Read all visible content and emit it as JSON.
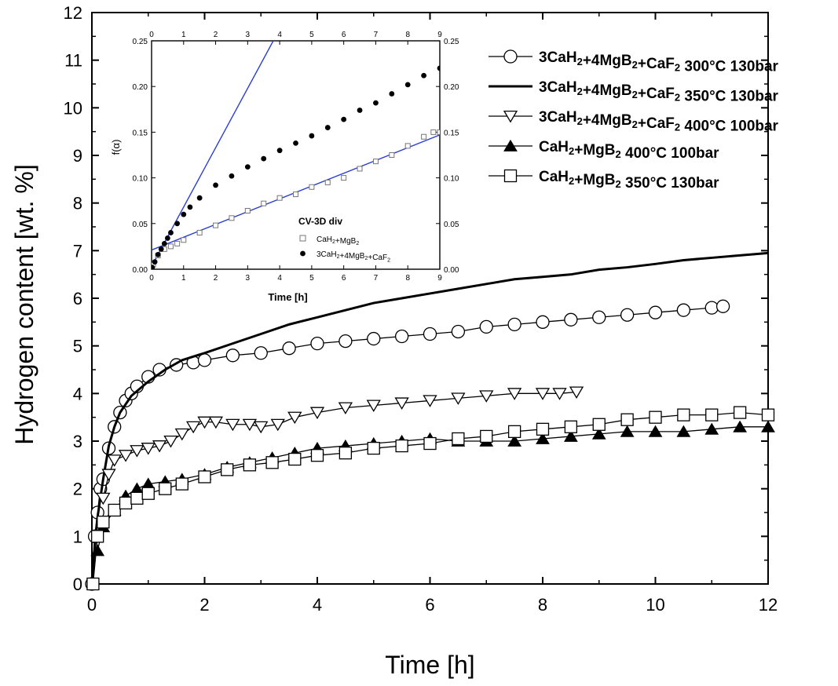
{
  "chart_data": {
    "type": "line",
    "xlabel": "Time [h]",
    "ylabel": "Hydrogen content [wt. %]",
    "xlim": [
      0,
      12
    ],
    "ylim": [
      0,
      12
    ],
    "xticks": [
      "0",
      "2",
      "4",
      "6",
      "8",
      "10",
      "12"
    ],
    "yticks": [
      "0",
      "1",
      "2",
      "3",
      "4",
      "5",
      "6",
      "7",
      "8",
      "9",
      "10",
      "11",
      "12"
    ],
    "legend_position": "top-right",
    "series": [
      {
        "name": "3CaH₂+4MgB₂+CaF₂ 300°C 130bar",
        "marker": "open-circle",
        "x": [
          0,
          0.05,
          0.1,
          0.15,
          0.2,
          0.3,
          0.4,
          0.5,
          0.6,
          0.7,
          0.8,
          1.0,
          1.2,
          1.5,
          1.8,
          2.0,
          2.5,
          3.0,
          3.5,
          4.0,
          4.5,
          5.0,
          5.5,
          6.0,
          6.5,
          7.0,
          7.5,
          8.0,
          8.5,
          9.0,
          9.5,
          10.0,
          10.5,
          11.0,
          11.2
        ],
        "y": [
          0,
          1.0,
          1.5,
          2.0,
          2.2,
          2.85,
          3.3,
          3.6,
          3.85,
          4.0,
          4.15,
          4.35,
          4.5,
          4.6,
          4.65,
          4.7,
          4.8,
          4.85,
          4.95,
          5.05,
          5.1,
          5.15,
          5.2,
          5.25,
          5.3,
          5.4,
          5.45,
          5.5,
          5.55,
          5.6,
          5.65,
          5.7,
          5.75,
          5.8,
          5.83
        ]
      },
      {
        "name": "3CaH₂+4MgB₂+CaF₂ 350°C 130bar",
        "marker": "none",
        "x": [
          0,
          0.05,
          0.1,
          0.2,
          0.3,
          0.4,
          0.5,
          0.7,
          1.0,
          1.3,
          1.6,
          2.0,
          2.5,
          3.0,
          3.5,
          4.0,
          4.5,
          5.0,
          5.5,
          6.0,
          6.5,
          7.0,
          7.5,
          8.0,
          8.5,
          9.0,
          9.5,
          10.0,
          10.5,
          11.0,
          11.5,
          12.0
        ],
        "y": [
          0,
          0.8,
          1.4,
          2.2,
          2.9,
          3.3,
          3.6,
          3.95,
          4.25,
          4.5,
          4.7,
          4.85,
          5.05,
          5.25,
          5.45,
          5.6,
          5.75,
          5.9,
          6.0,
          6.1,
          6.2,
          6.3,
          6.4,
          6.45,
          6.5,
          6.6,
          6.65,
          6.72,
          6.8,
          6.85,
          6.9,
          6.95
        ]
      },
      {
        "name": "3CaH₂+4MgB₂+CaF₂ 400°C 100bar",
        "marker": "open-triangle-down",
        "x": [
          0.2,
          0.3,
          0.4,
          0.6,
          0.8,
          1.0,
          1.2,
          1.4,
          1.6,
          1.8,
          2.0,
          2.2,
          2.5,
          2.8,
          3.0,
          3.3,
          3.6,
          4.0,
          4.5,
          5.0,
          5.5,
          6.0,
          6.5,
          7.0,
          7.5,
          8.0,
          8.3,
          8.6
        ],
        "y": [
          1.8,
          2.3,
          2.6,
          2.7,
          2.8,
          2.85,
          2.9,
          3.0,
          3.15,
          3.3,
          3.4,
          3.4,
          3.35,
          3.35,
          3.3,
          3.35,
          3.5,
          3.6,
          3.7,
          3.75,
          3.8,
          3.85,
          3.9,
          3.95,
          4.0,
          4.0,
          4.0,
          4.03
        ]
      },
      {
        "name": "CaH₂+MgB₂ 400°C 100bar",
        "marker": "filled-triangle-up",
        "x": [
          0.1,
          0.2,
          0.4,
          0.6,
          0.8,
          1.0,
          1.3,
          1.6,
          2.0,
          2.4,
          2.8,
          3.2,
          3.6,
          4.0,
          4.5,
          5.0,
          5.5,
          6.0,
          6.5,
          7.0,
          7.5,
          8.0,
          8.5,
          9.0,
          9.5,
          10.0,
          10.5,
          11.0,
          11.5,
          12.0
        ],
        "y": [
          0.7,
          1.2,
          1.55,
          1.85,
          2.0,
          2.1,
          2.15,
          2.2,
          2.3,
          2.45,
          2.55,
          2.65,
          2.75,
          2.85,
          2.9,
          2.95,
          3.0,
          3.05,
          3.0,
          3.0,
          3.0,
          3.05,
          3.1,
          3.15,
          3.2,
          3.2,
          3.2,
          3.25,
          3.3,
          3.3
        ]
      },
      {
        "name": "CaH₂+MgB₂ 350°C 130bar",
        "marker": "open-square",
        "x": [
          0.02,
          0.1,
          0.2,
          0.4,
          0.6,
          0.8,
          1.0,
          1.3,
          1.6,
          2.0,
          2.4,
          2.8,
          3.2,
          3.6,
          4.0,
          4.5,
          5.0,
          5.5,
          6.0,
          6.5,
          7.0,
          7.5,
          8.0,
          8.5,
          9.0,
          9.5,
          10.0,
          10.5,
          11.0,
          11.5,
          12.0
        ],
        "y": [
          0,
          1.0,
          1.3,
          1.55,
          1.7,
          1.8,
          1.9,
          2.0,
          2.1,
          2.25,
          2.4,
          2.5,
          2.55,
          2.62,
          2.7,
          2.75,
          2.85,
          2.9,
          2.95,
          3.05,
          3.1,
          3.2,
          3.25,
          3.3,
          3.35,
          3.45,
          3.5,
          3.55,
          3.55,
          3.6,
          3.55
        ]
      }
    ],
    "inset": {
      "type": "scatter",
      "title": "CV-3D div",
      "xlabel": "Time [h]",
      "ylabel": "f(α)",
      "xlim": [
        0,
        9
      ],
      "ylim": [
        0,
        0.25
      ],
      "xticks": [
        "0",
        "1",
        "2",
        "3",
        "4",
        "5",
        "6",
        "7",
        "8",
        "9"
      ],
      "yticks": [
        "0.00",
        "0.05",
        "0.10",
        "0.15",
        "0.20",
        "0.25"
      ],
      "series": [
        {
          "name": "CaH₂+MgB₂",
          "marker": "open-square",
          "x": [
            0.05,
            0.2,
            0.4,
            0.6,
            0.8,
            1.0,
            1.5,
            2.0,
            2.5,
            3.0,
            3.5,
            4.0,
            4.5,
            5.0,
            5.5,
            6.0,
            6.5,
            7.0,
            7.5,
            8.0,
            8.5,
            8.8,
            9.0
          ],
          "y": [
            0.005,
            0.015,
            0.022,
            0.025,
            0.028,
            0.032,
            0.04,
            0.048,
            0.056,
            0.064,
            0.072,
            0.078,
            0.082,
            0.09,
            0.095,
            0.1,
            0.11,
            0.118,
            0.125,
            0.135,
            0.145,
            0.15,
            0.15
          ]
        },
        {
          "name": "3CaH₂+4MgB₂+CaF₂",
          "marker": "filled-circle",
          "x": [
            0.02,
            0.1,
            0.2,
            0.3,
            0.4,
            0.5,
            0.6,
            0.8,
            1.0,
            1.2,
            1.5,
            2.0,
            2.5,
            3.0,
            3.5,
            4.0,
            4.5,
            5.0,
            5.5,
            6.0,
            6.5,
            7.0,
            7.5,
            8.0,
            8.5,
            9.0
          ],
          "y": [
            0.002,
            0.008,
            0.016,
            0.022,
            0.028,
            0.034,
            0.04,
            0.05,
            0.06,
            0.068,
            0.078,
            0.092,
            0.102,
            0.112,
            0.121,
            0.13,
            0.138,
            0.146,
            0.155,
            0.164,
            0.174,
            0.182,
            0.192,
            0.202,
            0.212,
            0.22
          ]
        }
      ],
      "fit_lines": [
        {
          "color": "#2a3fcf",
          "from": [
            0,
            0.003
          ],
          "to": [
            3.8,
            0.25
          ]
        },
        {
          "color": "#2a3fcf",
          "from": [
            0,
            0.021
          ],
          "to": [
            9.0,
            0.147
          ]
        }
      ]
    }
  }
}
